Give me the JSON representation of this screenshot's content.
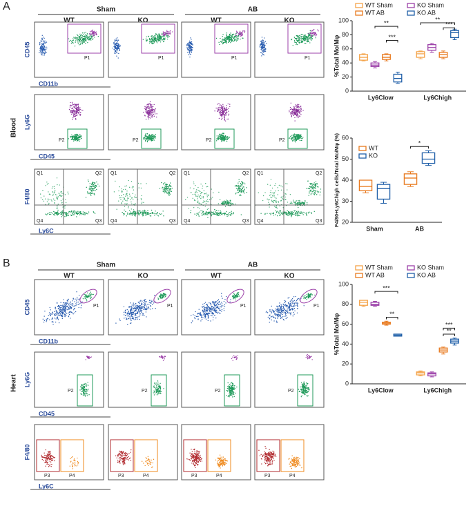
{
  "panel_labels": [
    "A",
    "B"
  ],
  "tissue_labels": [
    "Blood",
    "Heart"
  ],
  "groups": [
    "Sham",
    "AB"
  ],
  "genotypes": [
    "WT",
    "KO",
    "WT",
    "KO"
  ],
  "axis_labels": {
    "blood": [
      [
        "CD45",
        "CD11b"
      ],
      [
        "Ly6G",
        "CD45"
      ],
      [
        "F4/80",
        "Ly6C"
      ]
    ],
    "heart": [
      [
        "CD45",
        "CD11b"
      ],
      [
        "Ly6G",
        "CD45"
      ],
      [
        "F4/80",
        "Ly6C"
      ]
    ]
  },
  "gates": {
    "blood": [
      [
        "P1"
      ],
      [
        "P2"
      ],
      [
        "Q1",
        "Q2",
        "Q3",
        "Q4"
      ]
    ],
    "heart": [
      [
        "P1"
      ],
      [
        "P2"
      ],
      [
        "P3",
        "P4"
      ]
    ]
  },
  "chart_data": [
    {
      "type": "box",
      "ylabel": "%Total Mo/Mφ",
      "categories": [
        "Ly6Clow",
        "Ly6Chigh"
      ],
      "ylim": [
        0,
        100
      ],
      "yticks": [
        0,
        20,
        40,
        60,
        80,
        100
      ],
      "series": [
        {
          "name": "WT Sham",
          "color": "#f4a247",
          "values": [
            [
              43,
              44,
              48,
              52,
              53
            ],
            [
              46,
              48,
              53,
              56,
              57
            ]
          ]
        },
        {
          "name": "KO Sham",
          "color": "#9b3fa8",
          "values": [
            [
              33,
              35,
              37,
              40,
              42
            ],
            [
              55,
              58,
              62,
              66,
              68
            ]
          ]
        },
        {
          "name": "WT AB",
          "color": "#e8781c",
          "values": [
            [
              43,
              45,
              48,
              52,
              53
            ],
            [
              46,
              48,
              52,
              55,
              57
            ]
          ]
        },
        {
          "name": "KO AB",
          "color": "#1f5fa8",
          "values": [
            [
              11,
              13,
              18,
              24,
              27
            ],
            [
              73,
              76,
              83,
              86,
              88
            ]
          ]
        }
      ],
      "annotations": [
        "**",
        "***",
        "**",
        "***"
      ]
    },
    {
      "type": "box",
      "ylabel": "F4/80+Ly6Chigh cells/Total Mo/Mφ (%)",
      "categories": [
        "Sham",
        "AB"
      ],
      "ylim": [
        20,
        60
      ],
      "yticks": [
        20,
        30,
        40,
        50,
        60
      ],
      "series": [
        {
          "name": "WT",
          "color": "#e8781c",
          "values": [
            [
              34,
              35,
              37,
              40,
              40
            ],
            [
              37,
              38,
              41,
              43,
              44
            ]
          ]
        },
        {
          "name": "KO",
          "color": "#1f5fa8",
          "values": [
            [
              29,
              31,
              36,
              38,
              39
            ],
            [
              47,
              48,
              50,
              53,
              54
            ]
          ]
        }
      ],
      "annotations": [
        "*"
      ]
    },
    {
      "type": "box",
      "ylabel": "%Total Mo/Mφ",
      "categories": [
        "Ly6Clow",
        "Ly6Chigh"
      ],
      "ylim": [
        0,
        100
      ],
      "yticks": [
        0,
        20,
        40,
        60,
        80,
        100
      ],
      "series": [
        {
          "name": "WT Sham",
          "color": "#f4a247",
          "values": [
            [
              78,
              79,
              82,
              84,
              84
            ],
            [
              8,
              9,
              11,
              12,
              13
            ]
          ]
        },
        {
          "name": "KO Sham",
          "color": "#9b3fa8",
          "values": [
            [
              78,
              79,
              80,
              82,
              83
            ],
            [
              7,
              8,
              10,
              11,
              12
            ]
          ]
        },
        {
          "name": "WT AB",
          "color": "#e8781c",
          "values": [
            [
              59,
              60,
              61,
              62,
              63
            ],
            [
              30,
              32,
              34,
              36,
              37
            ]
          ]
        },
        {
          "name": "KO AB",
          "color": "#1f5fa8",
          "values": [
            [
              48,
              48,
              49,
              50,
              50
            ],
            [
              39,
              41,
              43,
              45,
              46
            ]
          ]
        }
      ],
      "annotations": [
        "***",
        "**",
        "***",
        "**"
      ]
    }
  ]
}
